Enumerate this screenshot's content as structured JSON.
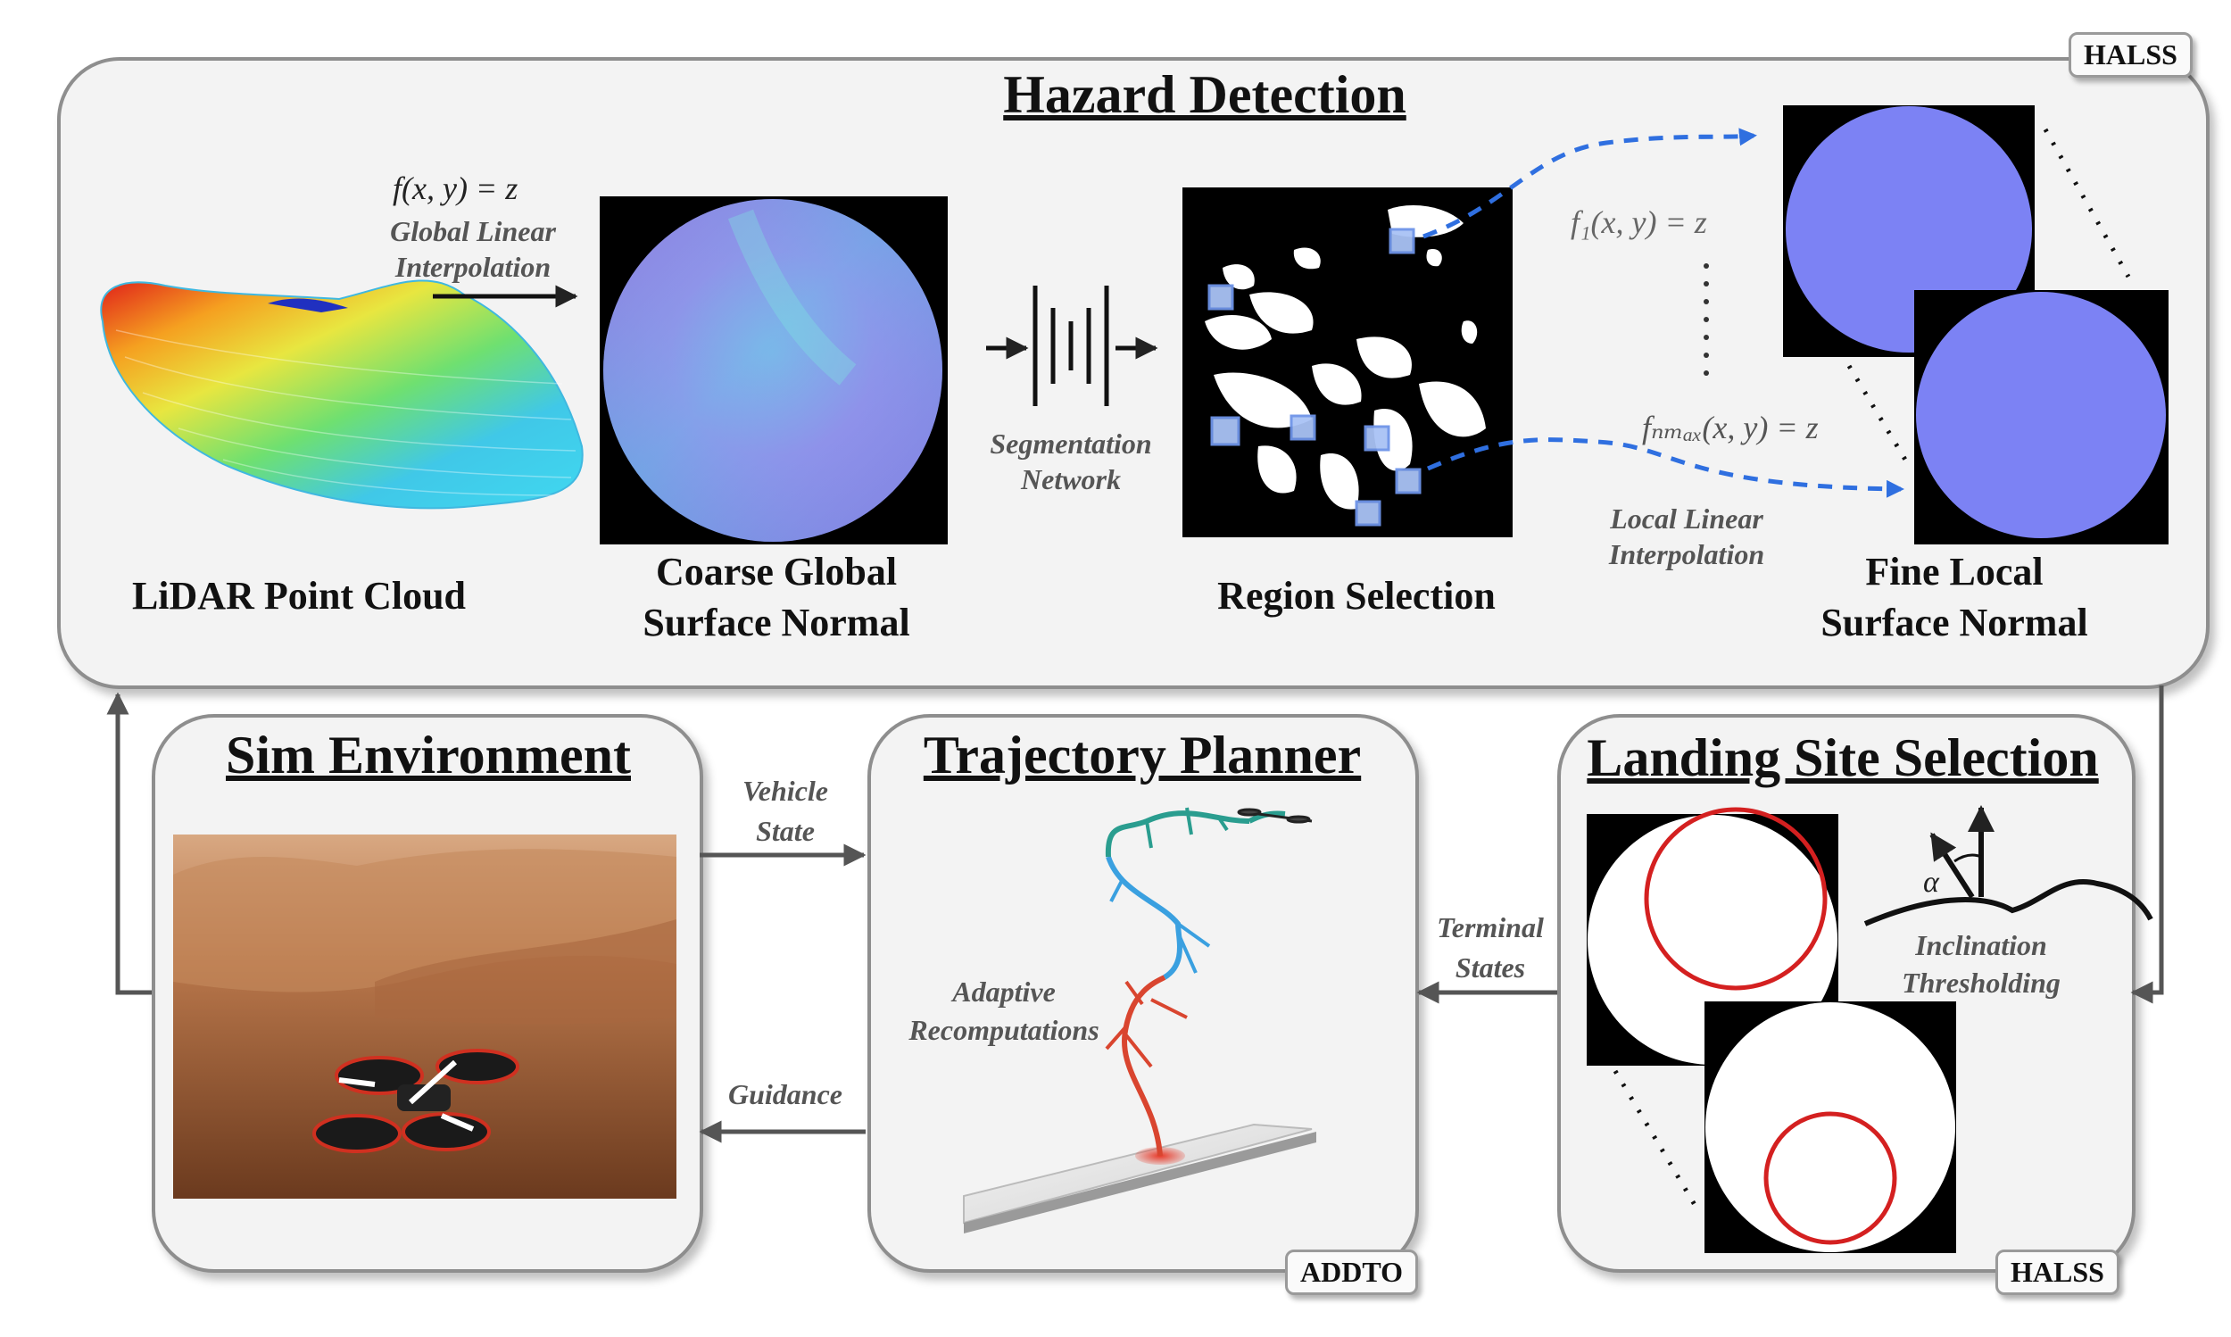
{
  "hazard": {
    "title": "Hazard Detection",
    "tag": "HALSS",
    "lidar_caption": "LiDAR Point Cloud",
    "coarse_caption_1": "Coarse Global",
    "coarse_caption_2": "Surface Normal",
    "region_caption": "Region Selection",
    "fine_caption_1": "Fine Local",
    "fine_caption_2": "Surface Normal",
    "global_eq": "f(x, y) = z",
    "global_interp_1": "Global Linear",
    "global_interp_2": "Interpolation",
    "seg_1": "Segmentation",
    "seg_2": "Network",
    "f1_eq": "f₁(x, y) = z",
    "fn_eq": "fₙₘₐₓ(x, y) = z",
    "local_interp_1": "Local Linear",
    "local_interp_2": "Interpolation"
  },
  "sim": {
    "title": "Sim Environment"
  },
  "traj": {
    "title": "Trajectory Planner",
    "tag": "ADDTO",
    "adaptive_1": "Adaptive",
    "adaptive_2": "Recomputations"
  },
  "landing": {
    "title": "Landing Site Selection",
    "tag": "HALSS",
    "inclination_1": "Inclination",
    "inclination_2": "Thresholding",
    "alpha": "α"
  },
  "arrows": {
    "vehicle_1": "Vehicle",
    "vehicle_2": "State",
    "guidance": "Guidance",
    "terminal_1": "Terminal",
    "terminal_2": "States"
  },
  "colors": {
    "dashed_arrow": "#2f6fe0",
    "circle": "#d42020",
    "surface_normal": "#7b7ff5",
    "path_green": "#2a9d8f",
    "path_blue": "#3aa0e0",
    "path_red": "#d9452f"
  }
}
